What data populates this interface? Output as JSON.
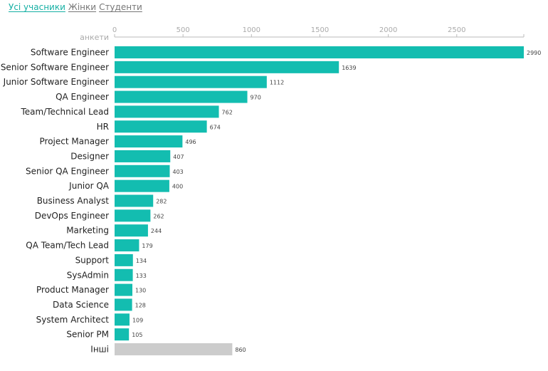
{
  "tabs": [
    {
      "label": "Усі учасники",
      "active": true
    },
    {
      "label": "Жінки",
      "active": false
    },
    {
      "label": "Студенти",
      "active": false
    }
  ],
  "colors": {
    "bar": "#13bdb0",
    "other_bar": "#cccccc",
    "tab_active": "#16b0a4",
    "tab_inactive": "#777777",
    "axis": "#bbbbbb",
    "tick_text": "#aaaaaa",
    "category_text": "#222222",
    "value_text": "#444444"
  },
  "chart_data": {
    "type": "bar",
    "orientation": "horizontal",
    "axis_label": "анкети",
    "xlim": [
      0,
      2990
    ],
    "ticks": [
      0,
      500,
      1000,
      1500,
      2000,
      2500
    ],
    "grid": false,
    "categories": [
      "Software Engineer",
      "Senior Software Engineer",
      "Junior Software Engineer",
      "QA Engineer",
      "Team/Technical Lead",
      "HR",
      "Project Manager",
      "Designer",
      "Senior QA Engineer",
      "Junior QA",
      "Business Analyst",
      "DevOps Engineer",
      "Marketing",
      "QA Team/Tech Lead",
      "Support",
      "SysAdmin",
      "Product Manager",
      "Data Science",
      "System Architect",
      "Senior PM",
      "Інші"
    ],
    "values": [
      2990,
      1639,
      1112,
      970,
      762,
      674,
      496,
      407,
      403,
      400,
      282,
      262,
      244,
      179,
      134,
      133,
      130,
      128,
      109,
      105,
      860
    ],
    "highlight_gray": [
      "Інші"
    ]
  }
}
